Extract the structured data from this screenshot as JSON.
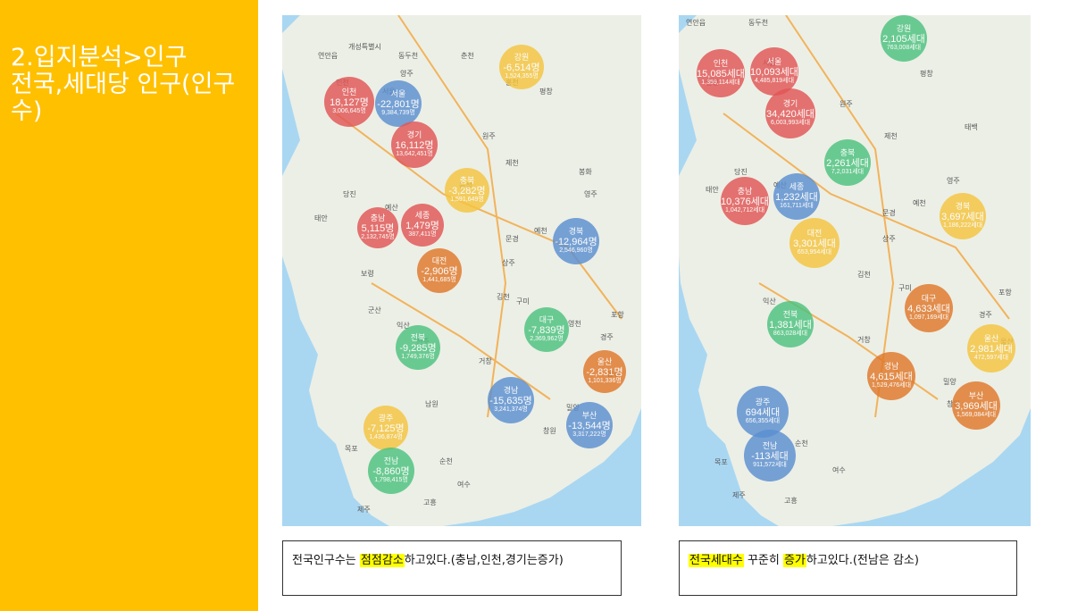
{
  "slide": {
    "title": "2.입지분석>인구\n전국,세대당  인구(인구수)"
  },
  "colors": {
    "sidebar": "#FFC000",
    "highlight": "#FFFF00",
    "sea": "#a9d7f2",
    "land": "#ecefe6",
    "marker_red": "#e25656",
    "marker_blue": "#5b8fd1",
    "marker_orange": "#e0782b",
    "marker_yellow": "#f5c540",
    "marker_green": "#4dc27f"
  },
  "population_map": {
    "places": [
      "연안읍",
      "개성특별시",
      "동두천",
      "춘천",
      "양주",
      "인천",
      "서울",
      "원주",
      "평창",
      "홍천",
      "제천",
      "당진",
      "태안",
      "예산",
      "보령",
      "음성",
      "문경",
      "예천",
      "영주",
      "봉화",
      "상주",
      "구미",
      "김천",
      "포항",
      "경주",
      "영천",
      "군산",
      "익산",
      "전주",
      "남원",
      "거창",
      "밀양",
      "창원",
      "목포",
      "순천",
      "여수",
      "고흥",
      "제주",
      "울산"
    ],
    "markers": [
      {
        "name": "인천",
        "value": "18,127명",
        "total": "3,006,645명"
      },
      {
        "name": "서울",
        "value": "-22,801명",
        "total": "9,384,739명"
      },
      {
        "name": "경기",
        "value": "16,112명",
        "total": "13,642,451명"
      },
      {
        "name": "강원",
        "value": "-6,514명",
        "total": "1,524,355명"
      },
      {
        "name": "충북",
        "value": "-3,282명",
        "total": "1,591,649명"
      },
      {
        "name": "충남",
        "value": "5,115명",
        "total": "2,132,745명"
      },
      {
        "name": "세종",
        "value": "1,479명",
        "total": "387,411명"
      },
      {
        "name": "대전",
        "value": "-2,906명",
        "total": "1,441,685명"
      },
      {
        "name": "경북",
        "value": "-12,964명",
        "total": "2,546,960명"
      },
      {
        "name": "대구",
        "value": "-7,839명",
        "total": "2,369,962명"
      },
      {
        "name": "전북",
        "value": "-9,285명",
        "total": "1,749,376명"
      },
      {
        "name": "울산",
        "value": "-2,831명",
        "total": "1,101,336명"
      },
      {
        "name": "경남",
        "value": "-15,635명",
        "total": "3,241,374명"
      },
      {
        "name": "부산",
        "value": "-13,544명",
        "total": "3,317,222명"
      },
      {
        "name": "광주",
        "value": "-7,125명",
        "total": "1,436,874명"
      },
      {
        "name": "전남",
        "value": "-8,860명",
        "total": "1,798,415명"
      }
    ],
    "caption": {
      "before": "전국인구수는 ",
      "highlight": "점점감소",
      "after": "하고있다.(충남,인천,경기는증가)"
    }
  },
  "household_map": {
    "places": [
      "연안읍",
      "동두천",
      "인천",
      "서울",
      "원주",
      "평창",
      "제천",
      "태안",
      "당진",
      "예산",
      "영주",
      "예천",
      "문경",
      "상주",
      "김천",
      "구미",
      "포항",
      "경주",
      "거창",
      "익산",
      "밀양",
      "창원",
      "목포",
      "순천",
      "여수",
      "고흥",
      "제주",
      "울산",
      "태백"
    ],
    "markers": [
      {
        "name": "강원",
        "value": "2,105세대",
        "total": "763,008세대"
      },
      {
        "name": "인천",
        "value": "15,085세대",
        "total": "1,359,114세대"
      },
      {
        "name": "서울",
        "value": "10,093세대",
        "total": "4,485,819세대"
      },
      {
        "name": "경기",
        "value": "34,420세대",
        "total": "6,003,993세대"
      },
      {
        "name": "충북",
        "value": "2,261세대",
        "total": "7,2,031세대"
      },
      {
        "name": "충남",
        "value": "10,376세대",
        "total": "1,042,712세대"
      },
      {
        "name": "세종",
        "value": "1,232세대",
        "total": "161,711세대"
      },
      {
        "name": "대전",
        "value": "3,301세대",
        "total": "653,954세대"
      },
      {
        "name": "경북",
        "value": "3,697세대",
        "total": "1,186,222세대"
      },
      {
        "name": "대구",
        "value": "4,633세대",
        "total": "1,097,169세대"
      },
      {
        "name": "전북",
        "value": "1,381세대",
        "total": "863,028세대"
      },
      {
        "name": "울산",
        "value": "2,981세대",
        "total": "472,597세대"
      },
      {
        "name": "경남",
        "value": "4,615세대",
        "total": "1,529,476세대"
      },
      {
        "name": "부산",
        "value": "3,969세대",
        "total": "1,569,084세대"
      },
      {
        "name": "광주",
        "value": "694세대",
        "total": "656,355세대"
      },
      {
        "name": "전남",
        "value": "-113세대",
        "total": "911,572세대"
      }
    ],
    "caption": {
      "highlight1": "전국세대수",
      "middle": " 꾸준히 ",
      "highlight2": "증가",
      "after": "하고있다.(전남은  감소)"
    }
  }
}
